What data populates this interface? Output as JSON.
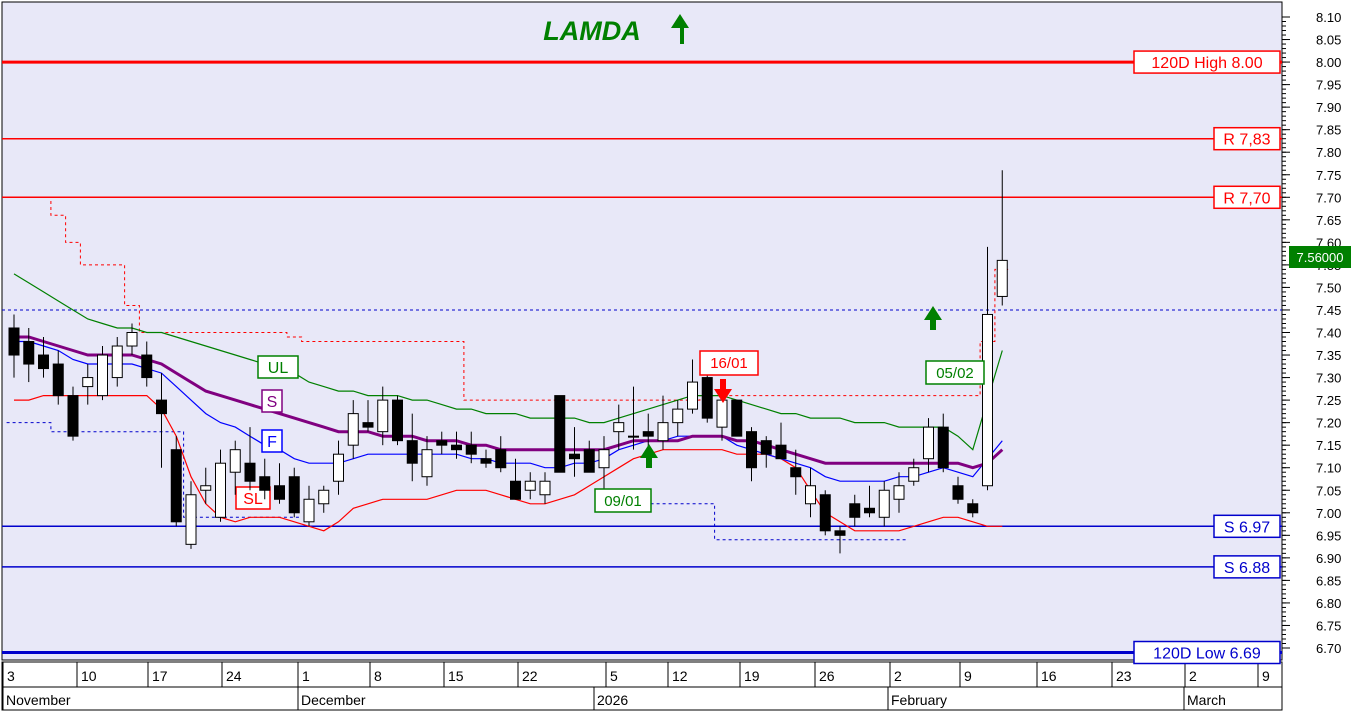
{
  "chart_data": {
    "type": "candlestick",
    "title": "LAMDA",
    "title_icon": "up-arrow-icon",
    "ylim": [
      6.68,
      8.12
    ],
    "y_ticks": [
      "8.10",
      "8.05",
      "8.00",
      "7.95",
      "7.90",
      "7.85",
      "7.80",
      "7.75",
      "7.70",
      "7.65",
      "7.60",
      "7.55",
      "7.50",
      "7.45",
      "7.40",
      "7.35",
      "7.30",
      "7.25",
      "7.20",
      "7.15",
      "7.10",
      "7.05",
      "7.00",
      "6.95",
      "6.90",
      "6.85",
      "6.80",
      "6.75",
      "6.70"
    ],
    "x_day_labels": [
      "3",
      "10",
      "17",
      "24",
      "1",
      "8",
      "15",
      "22",
      "5",
      "12",
      "19",
      "26",
      "2",
      "9",
      "16",
      "23",
      "2",
      "9"
    ],
    "x_month_labels": [
      "November",
      "December",
      "2026",
      "February",
      "March"
    ],
    "last_price": "7.56000",
    "candles": [
      {
        "o": 7.41,
        "h": 7.44,
        "l": 7.3,
        "c": 7.35
      },
      {
        "o": 7.38,
        "h": 7.41,
        "l": 7.29,
        "c": 7.33
      },
      {
        "o": 7.35,
        "h": 7.39,
        "l": 7.3,
        "c": 7.32
      },
      {
        "o": 7.33,
        "h": 7.36,
        "l": 7.24,
        "c": 7.26
      },
      {
        "o": 7.26,
        "h": 7.28,
        "l": 7.16,
        "c": 7.17
      },
      {
        "o": 7.28,
        "h": 7.33,
        "l": 7.24,
        "c": 7.3
      },
      {
        "o": 7.26,
        "h": 7.37,
        "l": 7.25,
        "c": 7.35
      },
      {
        "o": 7.3,
        "h": 7.39,
        "l": 7.28,
        "c": 7.37
      },
      {
        "o": 7.37,
        "h": 7.42,
        "l": 7.35,
        "c": 7.4
      },
      {
        "o": 7.35,
        "h": 7.38,
        "l": 7.28,
        "c": 7.3
      },
      {
        "o": 7.25,
        "h": 7.31,
        "l": 7.1,
        "c": 7.22
      },
      {
        "o": 7.14,
        "h": 7.17,
        "l": 6.97,
        "c": 6.98
      },
      {
        "o": 6.93,
        "h": 7.07,
        "l": 6.92,
        "c": 7.04
      },
      {
        "o": 7.05,
        "h": 7.1,
        "l": 7.02,
        "c": 7.06
      },
      {
        "o": 6.99,
        "h": 7.14,
        "l": 6.98,
        "c": 7.11
      },
      {
        "o": 7.09,
        "h": 7.16,
        "l": 7.04,
        "c": 7.14
      },
      {
        "o": 7.11,
        "h": 7.19,
        "l": 7.05,
        "c": 7.07
      },
      {
        "o": 7.08,
        "h": 7.12,
        "l": 7.03,
        "c": 7.05
      },
      {
        "o": 7.06,
        "h": 7.11,
        "l": 7.02,
        "c": 7.03
      },
      {
        "o": 7.08,
        "h": 7.1,
        "l": 6.99,
        "c": 7.0
      },
      {
        "o": 6.98,
        "h": 7.06,
        "l": 6.97,
        "c": 7.03
      },
      {
        "o": 7.02,
        "h": 7.06,
        "l": 7.0,
        "c": 7.05
      },
      {
        "o": 7.07,
        "h": 7.16,
        "l": 7.04,
        "c": 7.13
      },
      {
        "o": 7.15,
        "h": 7.25,
        "l": 7.12,
        "c": 7.22
      },
      {
        "o": 7.2,
        "h": 7.25,
        "l": 7.18,
        "c": 7.19
      },
      {
        "o": 7.18,
        "h": 7.28,
        "l": 7.15,
        "c": 7.25
      },
      {
        "o": 7.25,
        "h": 7.26,
        "l": 7.15,
        "c": 7.16
      },
      {
        "o": 7.16,
        "h": 7.22,
        "l": 7.07,
        "c": 7.11
      },
      {
        "o": 7.08,
        "h": 7.17,
        "l": 7.06,
        "c": 7.14
      },
      {
        "o": 7.16,
        "h": 7.18,
        "l": 7.13,
        "c": 7.15
      },
      {
        "o": 7.15,
        "h": 7.18,
        "l": 7.12,
        "c": 7.14
      },
      {
        "o": 7.15,
        "h": 7.18,
        "l": 7.11,
        "c": 7.13
      },
      {
        "o": 7.12,
        "h": 7.14,
        "l": 7.1,
        "c": 7.11
      },
      {
        "o": 7.14,
        "h": 7.17,
        "l": 7.09,
        "c": 7.1
      },
      {
        "o": 7.07,
        "h": 7.12,
        "l": 7.03,
        "c": 7.03
      },
      {
        "o": 7.05,
        "h": 7.09,
        "l": 7.03,
        "c": 7.07
      },
      {
        "o": 7.04,
        "h": 7.09,
        "l": 7.02,
        "c": 7.07
      },
      {
        "o": 7.26,
        "h": 7.26,
        "l": 7.09,
        "c": 7.09
      },
      {
        "o": 7.13,
        "h": 7.19,
        "l": 7.08,
        "c": 7.12
      },
      {
        "o": 7.14,
        "h": 7.16,
        "l": 7.09,
        "c": 7.09
      },
      {
        "o": 7.1,
        "h": 7.17,
        "l": 7.02,
        "c": 7.14
      },
      {
        "o": 7.18,
        "h": 7.24,
        "l": 7.14,
        "c": 7.2
      },
      {
        "o": 7.17,
        "h": 7.28,
        "l": 7.14,
        "c": 7.17
      },
      {
        "o": 7.18,
        "h": 7.22,
        "l": 7.12,
        "c": 7.17
      },
      {
        "o": 7.16,
        "h": 7.26,
        "l": 7.14,
        "c": 7.2
      },
      {
        "o": 7.2,
        "h": 7.25,
        "l": 7.17,
        "c": 7.23
      },
      {
        "o": 7.23,
        "h": 7.34,
        "l": 7.22,
        "c": 7.29
      },
      {
        "o": 7.3,
        "h": 7.31,
        "l": 7.2,
        "c": 7.21
      },
      {
        "o": 7.19,
        "h": 7.26,
        "l": 7.16,
        "c": 7.25
      },
      {
        "o": 7.25,
        "h": 7.25,
        "l": 7.17,
        "c": 7.17
      },
      {
        "o": 7.18,
        "h": 7.19,
        "l": 7.07,
        "c": 7.1
      },
      {
        "o": 7.16,
        "h": 7.17,
        "l": 7.1,
        "c": 7.13
      },
      {
        "o": 7.15,
        "h": 7.2,
        "l": 7.12,
        "c": 7.12
      },
      {
        "o": 7.1,
        "h": 7.14,
        "l": 7.04,
        "c": 7.08
      },
      {
        "o": 7.02,
        "h": 7.1,
        "l": 6.99,
        "c": 7.06
      },
      {
        "o": 7.04,
        "h": 7.05,
        "l": 6.95,
        "c": 6.96
      },
      {
        "o": 6.96,
        "h": 6.97,
        "l": 6.91,
        "c": 6.95
      },
      {
        "o": 7.02,
        "h": 7.04,
        "l": 6.97,
        "c": 6.99
      },
      {
        "o": 7.01,
        "h": 7.06,
        "l": 6.99,
        "c": 7.0
      },
      {
        "o": 6.99,
        "h": 7.07,
        "l": 6.97,
        "c": 7.05
      },
      {
        "o": 7.03,
        "h": 7.09,
        "l": 7.0,
        "c": 7.06
      },
      {
        "o": 7.07,
        "h": 7.12,
        "l": 7.06,
        "c": 7.1
      },
      {
        "o": 7.12,
        "h": 7.21,
        "l": 7.09,
        "c": 7.19
      },
      {
        "o": 7.19,
        "h": 7.22,
        "l": 7.09,
        "c": 7.1
      },
      {
        "o": 7.06,
        "h": 7.08,
        "l": 7.02,
        "c": 7.03
      },
      {
        "o": 7.02,
        "h": 7.03,
        "l": 6.99,
        "c": 7.0
      },
      {
        "o": 7.06,
        "h": 7.59,
        "l": 7.05,
        "c": 7.44
      },
      {
        "o": 7.48,
        "h": 7.76,
        "l": 7.46,
        "c": 7.56
      }
    ],
    "overlays": {
      "UL": [
        7.53,
        7.51,
        7.49,
        7.47,
        7.45,
        7.43,
        7.42,
        7.41,
        7.41,
        7.4,
        7.4,
        7.39,
        7.38,
        7.37,
        7.36,
        7.35,
        7.34,
        7.33,
        7.32,
        7.31,
        7.29,
        7.28,
        7.27,
        7.27,
        7.26,
        7.26,
        7.26,
        7.25,
        7.25,
        7.24,
        7.23,
        7.23,
        7.22,
        7.22,
        7.22,
        7.21,
        7.21,
        7.21,
        7.21,
        7.2,
        7.2,
        7.21,
        7.22,
        7.23,
        7.24,
        7.25,
        7.26,
        7.26,
        7.26,
        7.25,
        7.24,
        7.23,
        7.22,
        7.22,
        7.21,
        7.21,
        7.21,
        7.2,
        7.2,
        7.2,
        7.19,
        7.19,
        7.19,
        7.19,
        7.17,
        7.14,
        7.25,
        7.36
      ],
      "S": [
        7.39,
        7.39,
        7.38,
        7.37,
        7.36,
        7.35,
        7.35,
        7.35,
        7.35,
        7.34,
        7.33,
        7.31,
        7.29,
        7.27,
        7.26,
        7.25,
        7.24,
        7.23,
        7.22,
        7.21,
        7.2,
        7.19,
        7.18,
        7.18,
        7.18,
        7.17,
        7.17,
        7.17,
        7.16,
        7.16,
        7.16,
        7.15,
        7.15,
        7.14,
        7.14,
        7.14,
        7.14,
        7.14,
        7.14,
        7.14,
        7.14,
        7.15,
        7.16,
        7.16,
        7.16,
        7.16,
        7.17,
        7.17,
        7.17,
        7.16,
        7.16,
        7.15,
        7.14,
        7.13,
        7.12,
        7.11,
        7.11,
        7.11,
        7.11,
        7.11,
        7.11,
        7.11,
        7.11,
        7.11,
        7.11,
        7.1,
        7.11,
        7.14
      ],
      "F": [
        7.38,
        7.38,
        7.37,
        7.36,
        7.34,
        7.33,
        7.33,
        7.33,
        7.33,
        7.32,
        7.31,
        7.28,
        7.25,
        7.22,
        7.2,
        7.19,
        7.17,
        7.15,
        7.14,
        7.12,
        7.11,
        7.11,
        7.11,
        7.12,
        7.13,
        7.13,
        7.13,
        7.13,
        7.13,
        7.13,
        7.13,
        7.12,
        7.12,
        7.11,
        7.11,
        7.11,
        7.1,
        7.1,
        7.11,
        7.11,
        7.12,
        7.14,
        7.15,
        7.16,
        7.16,
        7.17,
        7.17,
        7.17,
        7.17,
        7.15,
        7.14,
        7.13,
        7.12,
        7.11,
        7.1,
        7.08,
        7.07,
        7.07,
        7.07,
        7.07,
        7.08,
        7.08,
        7.09,
        7.1,
        7.09,
        7.08,
        7.12,
        7.16
      ],
      "SL": [
        7.25,
        7.25,
        7.26,
        7.26,
        7.26,
        7.26,
        7.26,
        7.26,
        7.26,
        7.26,
        7.23,
        7.17,
        7.08,
        7.02,
        6.99,
        6.98,
        6.99,
        6.99,
        6.99,
        6.98,
        6.97,
        6.96,
        6.98,
        7.01,
        7.02,
        7.03,
        7.03,
        7.03,
        7.03,
        7.04,
        7.05,
        7.05,
        7.05,
        7.04,
        7.03,
        7.02,
        7.02,
        7.03,
        7.04,
        7.06,
        7.08,
        7.1,
        7.12,
        7.13,
        7.14,
        7.14,
        7.14,
        7.14,
        7.14,
        7.13,
        7.13,
        7.13,
        7.12,
        7.1,
        7.05,
        7.0,
        6.98,
        6.96,
        6.96,
        6.96,
        6.96,
        6.97,
        6.98,
        6.99,
        6.99,
        6.98,
        6.97,
        6.97
      ]
    },
    "stop_lines": {
      "red_stop": [
        7.7,
        7.7,
        7.7,
        7.66,
        7.6,
        7.55,
        7.55,
        7.55,
        7.46,
        7.4,
        7.4,
        7.4,
        7.4,
        7.4,
        7.4,
        7.4,
        7.4,
        7.4,
        7.4,
        7.39,
        7.38,
        7.38,
        7.38,
        7.38,
        7.38,
        7.38,
        7.38,
        7.38,
        7.38,
        7.38,
        7.38,
        7.25,
        7.25,
        7.25,
        7.25,
        7.25,
        7.25,
        7.25,
        7.25,
        7.25,
        7.25,
        7.25,
        7.25,
        7.25,
        7.25,
        7.25,
        7.25,
        7.26,
        7.26,
        7.26,
        7.26,
        7.26,
        7.26,
        7.26,
        7.26,
        7.26,
        7.26,
        7.26,
        7.26,
        7.26,
        7.26,
        7.26,
        7.26,
        7.26,
        7.26,
        7.26,
        7.38,
        7.54
      ],
      "blue_stop_early": [
        7.2,
        7.2,
        7.2,
        7.18,
        7.18,
        7.18,
        7.18,
        7.18,
        7.18,
        7.18,
        7.18,
        7.18,
        6.99,
        6.99,
        6.99,
        6.99,
        6.99,
        6.99,
        6.99,
        6.99
      ],
      "blue_stop_late": [
        7.02,
        7.02,
        7.02,
        7.02,
        7.02,
        7.02,
        7.02,
        7.02,
        6.94,
        6.94,
        6.94,
        6.94,
        6.94,
        6.94,
        6.94,
        6.94,
        6.94,
        6.94,
        6.94,
        6.94,
        6.94
      ]
    },
    "levels": [
      {
        "label": "120D High 8.00",
        "value": 8.0,
        "kind": "high"
      },
      {
        "label": "R 7,83",
        "value": 7.83,
        "kind": "resistance"
      },
      {
        "label": "R 7,70",
        "value": 7.7,
        "kind": "resistance"
      },
      {
        "label": "S 6.97",
        "value": 6.97,
        "kind": "support"
      },
      {
        "label": "S 6.88",
        "value": 6.88,
        "kind": "support"
      },
      {
        "label": "120D Low 6.69",
        "value": 6.69,
        "kind": "low"
      }
    ],
    "reference_line": 7.45,
    "overlay_labels": [
      "UL",
      "S",
      "F",
      "SL"
    ],
    "signals": [
      {
        "label": "09/01",
        "direction": "up",
        "bar": 46
      },
      {
        "label": "16/01",
        "direction": "down",
        "bar": 51
      },
      {
        "label": "05/02",
        "direction": "up",
        "bar": 66
      }
    ],
    "colors": {
      "plot_bg": "#e8e8f8",
      "resistance": "#ff0000",
      "support": "#0000cc",
      "title": "#008000",
      "UL": "#008000",
      "S": "#800080",
      "F": "#0000ff",
      "SL": "#ff0000",
      "last_price_bg": "#008000",
      "last_price_fg": "#ffffff"
    }
  }
}
